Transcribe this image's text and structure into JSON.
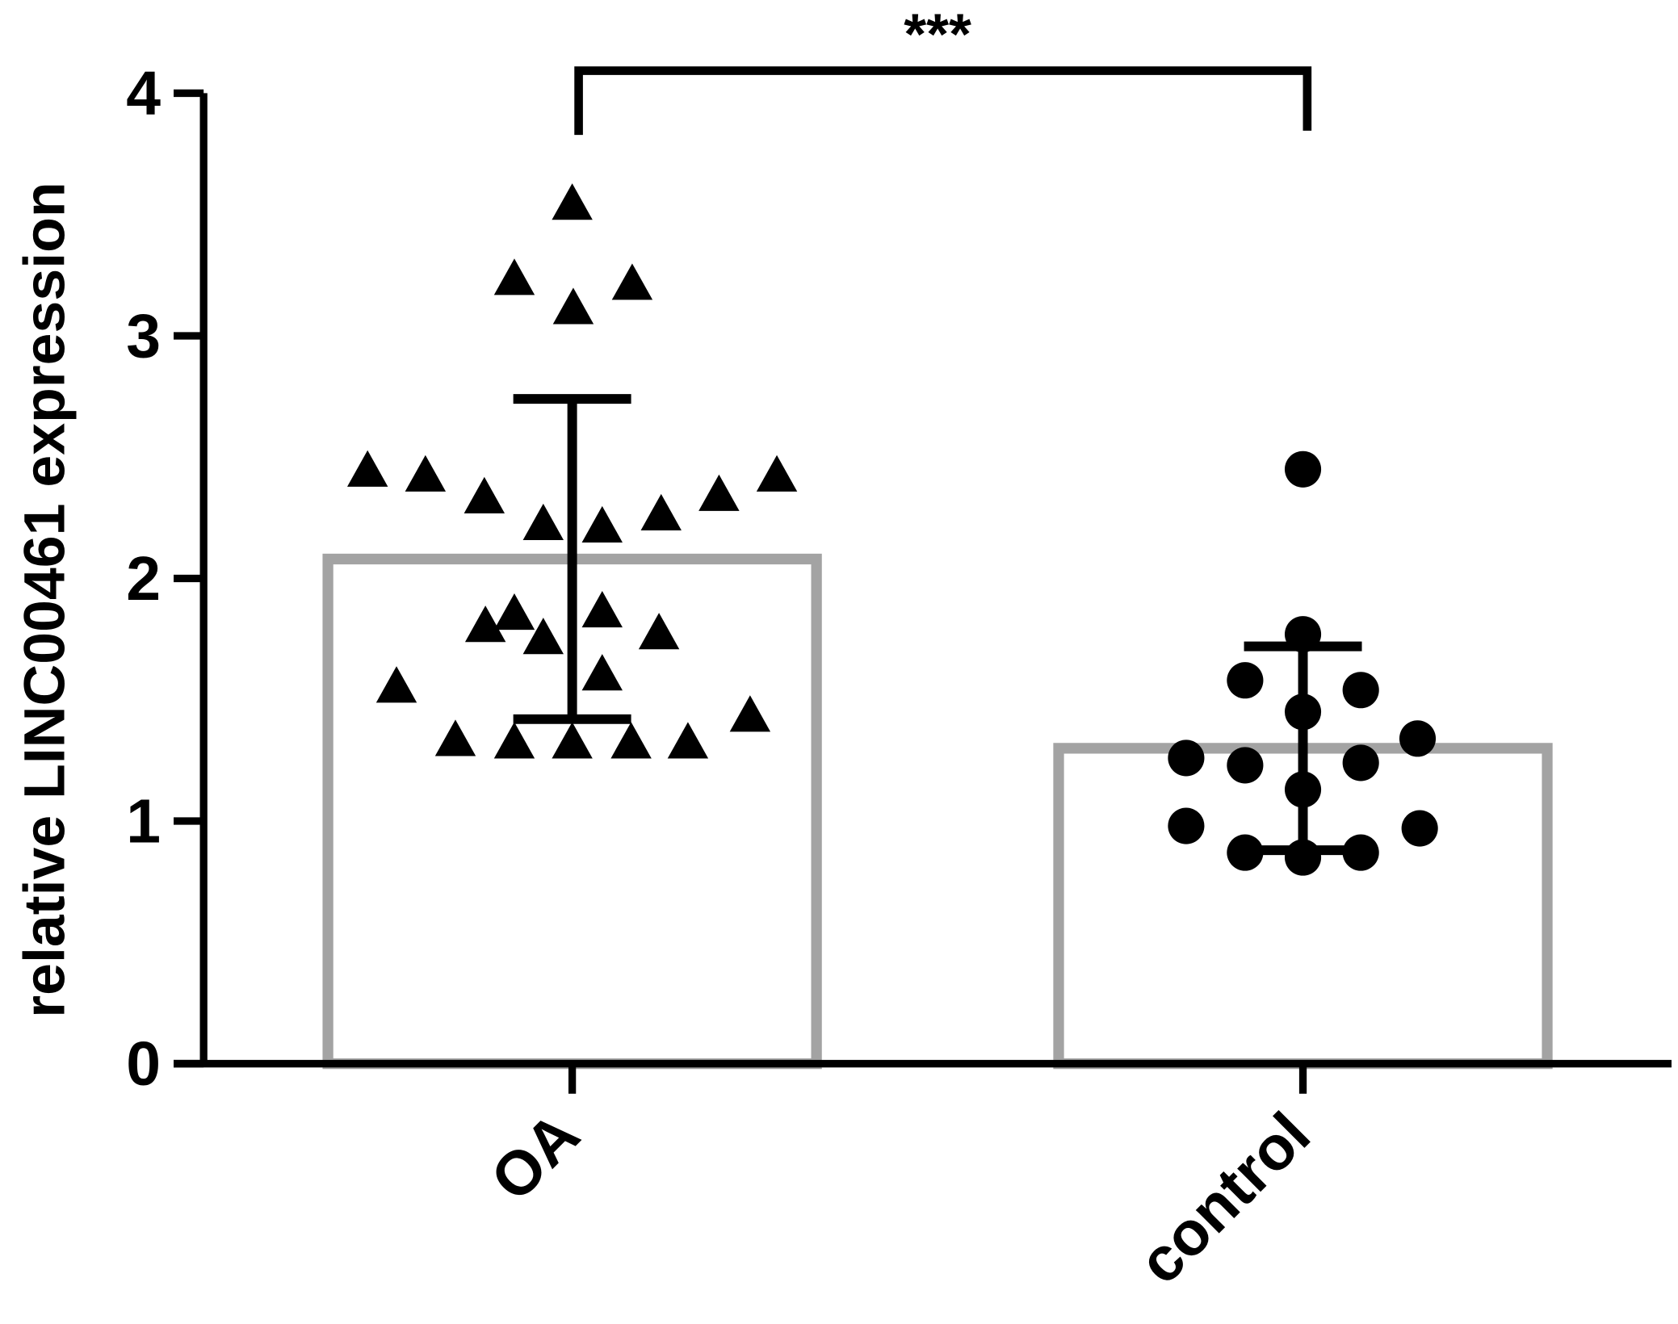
{
  "chart_data": {
    "type": "bar",
    "y_label": "relative LINC00461 expression",
    "annotation": "***",
    "categories": [
      "OA",
      "control"
    ],
    "series": [
      {
        "values": [
          2.08,
          1.3
        ],
        "errors": [
          0.66,
          0.42
        ],
        "color": "#a3a3a3",
        "points": [
          [
            3.54,
            3.23,
            3.21,
            3.11,
            2.44,
            2.42,
            2.42,
            2.33,
            2.34,
            2.22,
            2.21,
            2.26,
            1.8,
            1.85,
            1.75,
            1.86,
            1.77,
            1.55,
            1.6,
            1.43,
            1.33,
            1.32,
            1.32,
            1.32,
            1.32
          ],
          [
            2.45,
            1.77,
            1.58,
            1.54,
            1.45,
            1.34,
            1.26,
            1.23,
            1.24,
            1.13,
            0.98,
            0.97,
            0.87,
            0.85,
            0.87
          ]
        ],
        "markers": [
          "triangle",
          "circle"
        ],
        "point_color": "#000000"
      }
    ],
    "ylim": [
      0,
      4
    ],
    "yticks": [
      0,
      1,
      2,
      3,
      4
    ]
  }
}
